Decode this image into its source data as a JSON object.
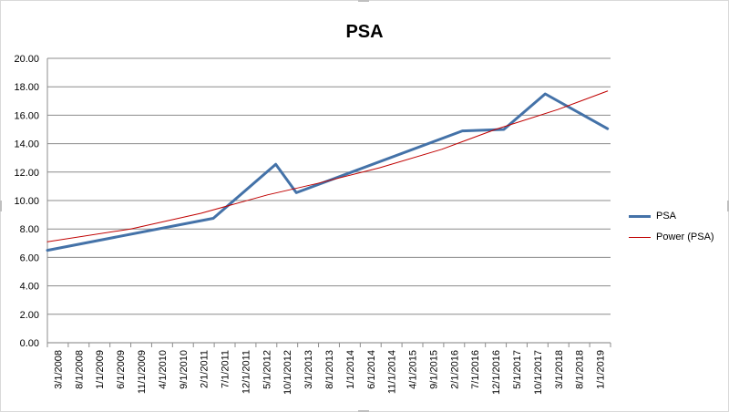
{
  "chart_data": {
    "type": "line",
    "title": "PSA",
    "xlabel": "",
    "ylabel": "",
    "ylim": [
      0,
      20
    ],
    "yticks": [
      "0.00",
      "2.00",
      "4.00",
      "6.00",
      "8.00",
      "10.00",
      "12.00",
      "14.00",
      "16.00",
      "18.00",
      "20.00"
    ],
    "categories": [
      "3/1/2008",
      "8/1/2008",
      "1/1/2009",
      "6/1/2009",
      "11/1/2009",
      "4/1/2010",
      "9/1/2010",
      "2/1/2011",
      "7/1/2011",
      "12/1/2011",
      "5/1/2012",
      "10/1/2012",
      "3/1/2013",
      "8/1/2013",
      "1/1/2014",
      "6/1/2014",
      "11/1/2014",
      "4/1/2015",
      "9/1/2015",
      "2/1/2016",
      "7/1/2016",
      "12/1/2016",
      "5/1/2017",
      "10/1/2017",
      "3/1/2018",
      "8/1/2018",
      "1/1/2019"
    ],
    "grid": true,
    "legend_position": "right",
    "series": [
      {
        "name": "PSA",
        "color": "#4472a8",
        "points": [
          {
            "x": "3/1/2008",
            "y": 6.5
          },
          {
            "x": "7/1/2011",
            "y": 8.75
          },
          {
            "x": "10/1/2012",
            "y": 12.55
          },
          {
            "x": "3/1/2013",
            "y": 10.55
          },
          {
            "x": "7/1/2016",
            "y": 14.9
          },
          {
            "x": "5/1/2017",
            "y": 15.0
          },
          {
            "x": "3/1/2018",
            "y": 17.5
          },
          {
            "x": "6/1/2019",
            "y": 15.05
          }
        ]
      },
      {
        "name": "Power (PSA)",
        "color": "#c00000",
        "points": [
          {
            "x": "3/1/2008",
            "y": 7.1
          },
          {
            "x": "11/1/2009",
            "y": 8.0
          },
          {
            "x": "4/1/2011",
            "y": 9.1
          },
          {
            "x": "8/1/2012",
            "y": 10.4
          },
          {
            "x": "8/1/2013",
            "y": 11.2
          },
          {
            "x": "11/1/2014",
            "y": 12.3
          },
          {
            "x": "2/1/2016",
            "y": 13.6
          },
          {
            "x": "3/1/2017",
            "y": 15.0
          },
          {
            "x": "6/1/2018",
            "y": 16.4
          },
          {
            "x": "6/1/2019",
            "y": 17.7
          }
        ]
      }
    ]
  }
}
